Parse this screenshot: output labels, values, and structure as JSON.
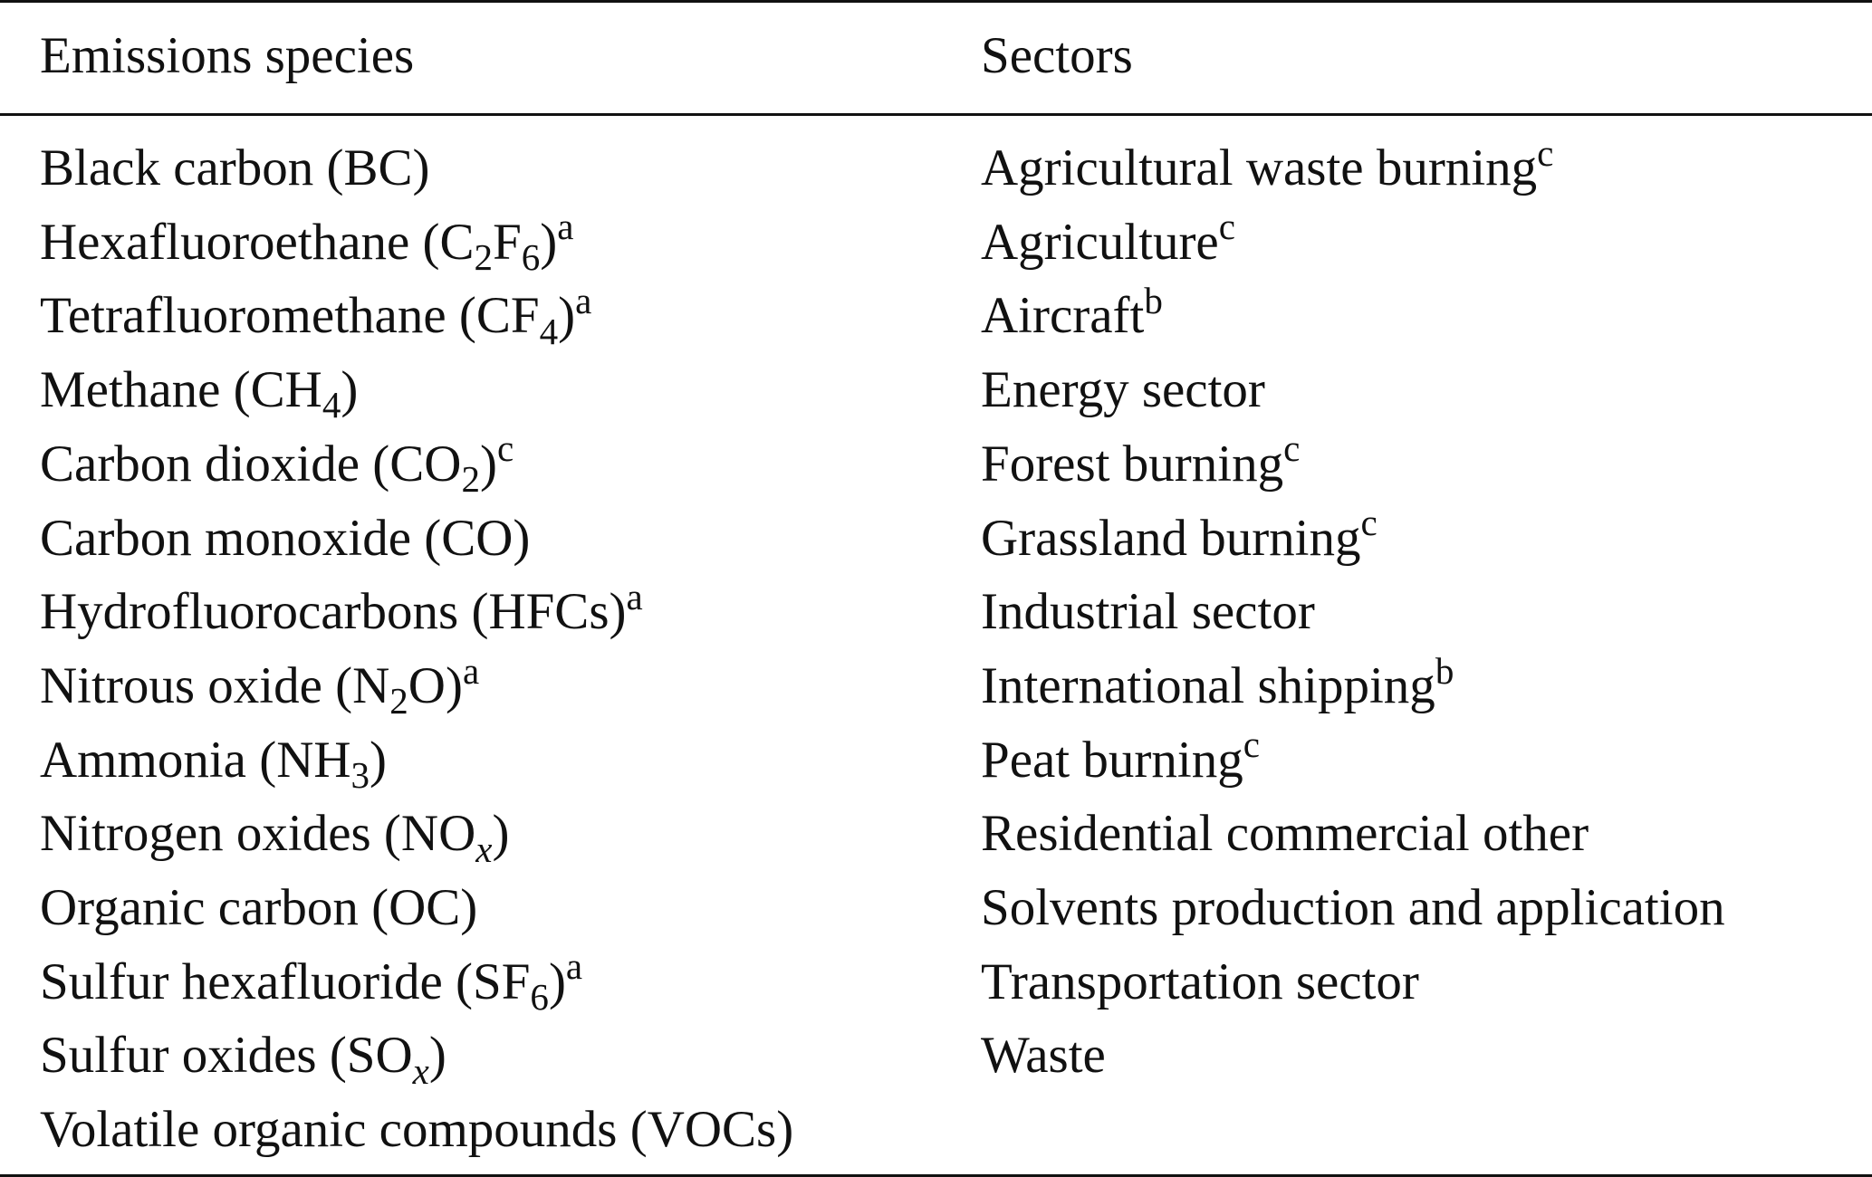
{
  "headers": {
    "species": "Emissions species",
    "sectors": "Sectors"
  },
  "rows": [
    {
      "species": {
        "text": "Black carbon (BC)",
        "sub": "",
        "sub_italic": false,
        "after": "",
        "sup": ""
      },
      "sector": {
        "text": "Agricultural waste burning",
        "sup": "c"
      }
    },
    {
      "species": {
        "text": "Hexafluoroethane (C",
        "sub": "2",
        "sub_italic": false,
        "mid": "F",
        "sub2": "6",
        "after": ")",
        "sup": "a"
      },
      "sector": {
        "text": "Agriculture",
        "sup": "c"
      }
    },
    {
      "species": {
        "text": "Tetrafluoromethane (CF",
        "sub": "4",
        "sub_italic": false,
        "after": ")",
        "sup": "a"
      },
      "sector": {
        "text": "Aircraft",
        "sup": "b"
      }
    },
    {
      "species": {
        "text": "Methane (CH",
        "sub": "4",
        "sub_italic": false,
        "after": ")",
        "sup": ""
      },
      "sector": {
        "text": "Energy sector",
        "sup": ""
      }
    },
    {
      "species": {
        "text": "Carbon dioxide (CO",
        "sub": "2",
        "sub_italic": false,
        "after": ")",
        "sup": "c"
      },
      "sector": {
        "text": "Forest burning",
        "sup": "c"
      }
    },
    {
      "species": {
        "text": "Carbon monoxide (CO)",
        "sub": "",
        "sub_italic": false,
        "after": "",
        "sup": ""
      },
      "sector": {
        "text": "Grassland burning",
        "sup": "c"
      }
    },
    {
      "species": {
        "text": "Hydrofluorocarbons (HFCs)",
        "sub": "",
        "sub_italic": false,
        "after": "",
        "sup": "a"
      },
      "sector": {
        "text": "Industrial sector",
        "sup": ""
      }
    },
    {
      "species": {
        "text": "Nitrous oxide (N",
        "sub": "2",
        "sub_italic": false,
        "after": "O)",
        "sup": "a"
      },
      "sector": {
        "text": "International shipping",
        "sup": "b"
      }
    },
    {
      "species": {
        "text": "Ammonia (NH",
        "sub": "3",
        "sub_italic": false,
        "after": ")",
        "sup": ""
      },
      "sector": {
        "text": "Peat burning",
        "sup": "c"
      }
    },
    {
      "species": {
        "text": "Nitrogen oxides (NO",
        "sub": "x",
        "sub_italic": true,
        "after": ")",
        "sup": ""
      },
      "sector": {
        "text": "Residential commercial other",
        "sup": ""
      }
    },
    {
      "species": {
        "text": "Organic carbon (OC)",
        "sub": "",
        "sub_italic": false,
        "after": "",
        "sup": ""
      },
      "sector": {
        "text": "Solvents production and application",
        "sup": ""
      }
    },
    {
      "species": {
        "text": "Sulfur hexafluoride (SF",
        "sub": "6",
        "sub_italic": false,
        "after": ")",
        "sup": "a"
      },
      "sector": {
        "text": "Transportation sector",
        "sup": ""
      }
    },
    {
      "species": {
        "text": "Sulfur oxides (SO",
        "sub": "x",
        "sub_italic": true,
        "after": ")",
        "sup": ""
      },
      "sector": {
        "text": "Waste",
        "sup": ""
      }
    },
    {
      "species": {
        "text": "Volatile organic compounds (VOCs)",
        "sub": "",
        "sub_italic": false,
        "after": "",
        "sup": ""
      },
      "sector": {
        "text": "",
        "sup": ""
      }
    }
  ]
}
